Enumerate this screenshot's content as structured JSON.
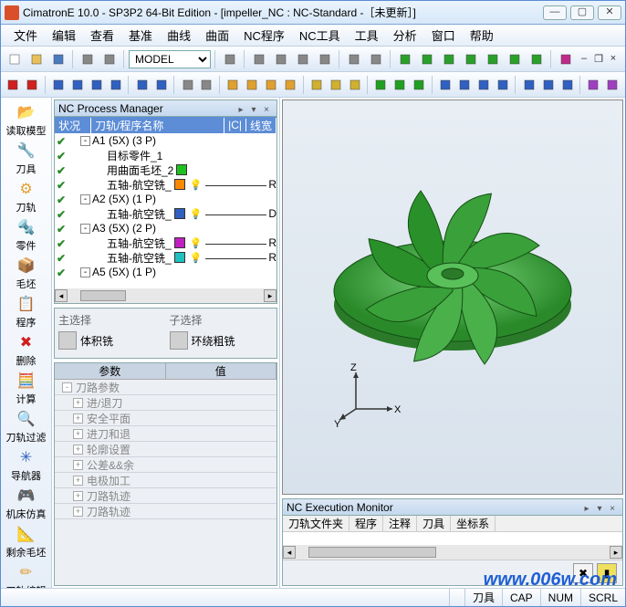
{
  "title": "CimatronE 10.0 - SP3P2 64-Bit Edition - [impeller_NC : NC-Standard -［未更新］]",
  "menu": [
    "文件",
    "编辑",
    "查看",
    "基准",
    "曲线",
    "曲面",
    "NC程序",
    "NC工具",
    "工具",
    "分析",
    "窗口",
    "帮助"
  ],
  "toolbar1": {
    "combo_value": "MODEL",
    "icons": [
      "new",
      "open",
      "save",
      "|",
      "print",
      "printpre",
      "|",
      "model-combo",
      "|",
      "dropdown",
      "|",
      "iso1",
      "iso2",
      "zoom",
      "zoomwin",
      "|",
      "pan",
      "orbit",
      "|",
      "box1",
      "box2",
      "box3",
      "box4",
      "box5",
      "box6",
      "box7",
      "|",
      "qmark"
    ],
    "icon_colors": [
      "#fff",
      "#e8c05a",
      "#4a7ac0",
      "",
      "#888",
      "#888",
      "",
      "",
      "",
      "#888",
      "",
      "#888",
      "#888",
      "#888",
      "#888",
      "",
      "#888",
      "#888",
      "",
      "#2aa02a",
      "#2aa02a",
      "#2aa02a",
      "#2aa02a",
      "#2aa02a",
      "#2aa02a",
      "#2aa02a",
      "",
      "#c02a8a"
    ]
  },
  "toolbar2": {
    "icons": [
      "arrow",
      "flag",
      "|",
      "sel1",
      "sel2",
      "sel3",
      "sel4",
      "|",
      "sel5",
      "sel6",
      "|",
      "d1",
      "d2",
      "|",
      "star1",
      "star2",
      "star3",
      "star4",
      "|",
      "y1",
      "y2",
      "y3",
      "|",
      "g1",
      "g2",
      "g3",
      "|",
      "b1",
      "b2",
      "b3",
      "b4",
      "|",
      "c1",
      "c2",
      "c3",
      "|",
      "p1",
      "p2"
    ],
    "icon_colors": [
      "#d02020",
      "#d02020",
      "",
      "#3060c0",
      "#3060c0",
      "#3060c0",
      "#3060c0",
      "",
      "#3060c0",
      "#3060c0",
      "",
      "#888",
      "#888",
      "",
      "#e0a030",
      "#e0a030",
      "#e0a030",
      "#e0a030",
      "",
      "#d0b030",
      "#d0b030",
      "#d0b030",
      "",
      "#20a020",
      "#20a020",
      "#20a020",
      "",
      "#3060c0",
      "#3060c0",
      "#3060c0",
      "#3060c0",
      "",
      "#3060c0",
      "#3060c0",
      "#3060c0",
      "",
      "#a040c0",
      "#a040c0"
    ]
  },
  "leftbar": [
    {
      "icon": "📂",
      "label": "读取模型",
      "color": "#e0a030"
    },
    {
      "icon": "🔧",
      "label": "刀具",
      "color": "#3060c0"
    },
    {
      "icon": "⚙",
      "label": "刀轨",
      "color": "#e0a030"
    },
    {
      "icon": "🔩",
      "label": "零件",
      "color": "#3060c0"
    },
    {
      "icon": "📦",
      "label": "毛坯",
      "color": "#20a020"
    },
    {
      "icon": "📋",
      "label": "程序",
      "color": "#e0a030"
    },
    {
      "icon": "✖",
      "label": "删除",
      "color": "#d02020"
    },
    {
      "icon": "🧮",
      "label": "计算",
      "color": "#888"
    },
    {
      "icon": "🔍",
      "label": "刀轨过滤",
      "color": "#3060c0"
    },
    {
      "icon": "✳",
      "label": "导航器",
      "color": "#3060c0"
    },
    {
      "icon": "🎮",
      "label": "机床仿真",
      "color": "#e0a030"
    },
    {
      "icon": "📐",
      "label": "剩余毛坯",
      "color": "#20a020"
    },
    {
      "icon": "✏",
      "label": "刀轨编辑",
      "color": "#e0a030"
    }
  ],
  "ncpm": {
    "title": "NC Process Manager",
    "columns": [
      "状况",
      "刀轨/程序名称",
      "|C|",
      "线宽"
    ],
    "rows": [
      {
        "indent": 0,
        "exp": "-",
        "label": "A1 (5X) (3 P)",
        "swatch": null,
        "bulb": false,
        "tail": ""
      },
      {
        "indent": 1,
        "exp": null,
        "label": "目标零件_1",
        "swatch": null,
        "bulb": false,
        "tail": ""
      },
      {
        "indent": 1,
        "exp": null,
        "label": "用曲面毛坯_2",
        "swatch": "#20c020",
        "bulb": false,
        "tail": ""
      },
      {
        "indent": 1,
        "exp": null,
        "label": "五轴-航空铣_",
        "swatch": "#ff8800",
        "bulb": true,
        "tail": "R"
      },
      {
        "indent": 0,
        "exp": "-",
        "label": "A2 (5X) (1 P)",
        "swatch": null,
        "bulb": false,
        "tail": ""
      },
      {
        "indent": 1,
        "exp": null,
        "label": "五轴-航空铣_",
        "swatch": "#3060c0",
        "bulb": true,
        "tail": "D"
      },
      {
        "indent": 0,
        "exp": "-",
        "label": "A3 (5X) (2 P)",
        "swatch": null,
        "bulb": false,
        "tail": ""
      },
      {
        "indent": 1,
        "exp": null,
        "label": "五轴-航空铣_",
        "swatch": "#c020c0",
        "bulb": true,
        "tail": "R"
      },
      {
        "indent": 1,
        "exp": null,
        "label": "五轴-航空铣_",
        "swatch": "#20c0c0",
        "bulb": true,
        "tail": "R"
      },
      {
        "indent": 0,
        "exp": "-",
        "label": "A5 (5X) (1 P)",
        "swatch": null,
        "bulb": false,
        "tail": ""
      }
    ]
  },
  "selection": {
    "main_label": "主选择",
    "main_value": "体积铣",
    "sub_label": "子选择",
    "sub_value": "环绕粗铣"
  },
  "params": {
    "columns": [
      "参数",
      "值"
    ],
    "rows": [
      "刀路参数",
      "进/退刀",
      "安全平面",
      "进刀和退",
      "轮廓设置",
      "公差&&余",
      "电极加工",
      "刀路轨迹",
      "刀路轨迹"
    ]
  },
  "exec": {
    "title": "NC Execution Monitor",
    "columns": [
      "刀轨文件夹",
      "程序",
      "注释",
      "刀具",
      "坐标系"
    ]
  },
  "status": {
    "cells": [
      "",
      "刀具",
      "CAP",
      "NUM",
      "SCRL"
    ]
  },
  "watermark": "www.006w.com",
  "axis_labels": {
    "x": "X",
    "y": "Y",
    "z": "Z"
  }
}
